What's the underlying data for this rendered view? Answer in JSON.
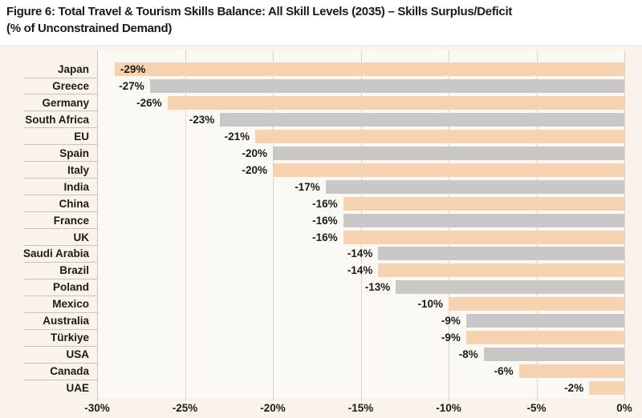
{
  "figure": {
    "title_line1": "Figure 6: Total Travel & Tourism Skills Balance: All Skill Levels (2035) – Skills Surplus/Deficit",
    "title_line2": "(% of Unconstrained Demand)"
  },
  "colors": {
    "peach": "#F6D3B1",
    "gray": "#C9C8C6",
    "panel_bg": "#FAF3EB",
    "plot_bg": "#FCF8F4",
    "grid": "#DAD5CD",
    "axis_line": "#C9C3BB",
    "text": "#1D1A17"
  },
  "chart_data": {
    "type": "bar",
    "orientation": "horizontal",
    "title": "Figure 6: Total Travel & Tourism Skills Balance: All Skill Levels (2035) – Skills Surplus/Deficit (% of Unconstrained Demand)",
    "categories": [
      "Japan",
      "Greece",
      "Germany",
      "South Africa",
      "EU",
      "Spain",
      "Italy",
      "India",
      "China",
      "France",
      "UK",
      "Saudi Arabia",
      "Brazil",
      "Poland",
      "Mexico",
      "Australia",
      "Türkiye",
      "USA",
      "Canada",
      "UAE"
    ],
    "values": [
      -29,
      -27,
      -26,
      -23,
      -21,
      -20,
      -20,
      -17,
      -16,
      -16,
      -16,
      -14,
      -14,
      -13,
      -10,
      -9,
      -9,
      -8,
      -6,
      -2
    ],
    "value_labels": [
      "-29%",
      "-27%",
      "-26%",
      "-23%",
      "-21%",
      "-20%",
      "-20%",
      "-17%",
      "-16%",
      "-16%",
      "-16%",
      "-14%",
      "-14%",
      "-13%",
      "-10%",
      "-9%",
      "-9%",
      "-8%",
      "-6%",
      "-2%"
    ],
    "bar_colors": [
      "peach",
      "gray",
      "peach",
      "gray",
      "peach",
      "gray",
      "peach",
      "gray",
      "peach",
      "gray",
      "peach",
      "gray",
      "peach",
      "gray",
      "peach",
      "gray",
      "peach",
      "gray",
      "peach",
      "peach"
    ],
    "xlim": [
      -30,
      0
    ],
    "x_ticks": [
      "-30%",
      "-25%",
      "-20%",
      "-15%",
      "-10%",
      "-5%",
      "0%"
    ],
    "grid": true,
    "legend": false
  }
}
